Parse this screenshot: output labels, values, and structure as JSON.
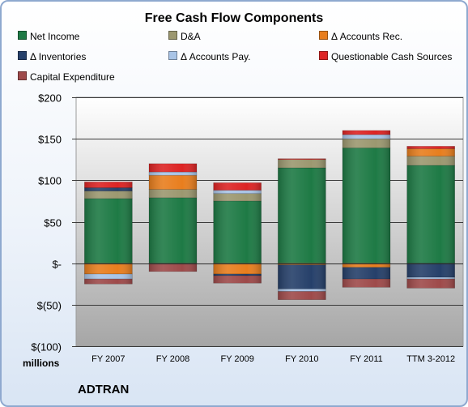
{
  "chart_data": {
    "type": "bar",
    "stacked": true,
    "title": "Free Cash Flow Components",
    "categories": [
      "FY 2007",
      "FY 2008",
      "FY 2009",
      "FY 2010",
      "FY 2011",
      "TTM 3-2012"
    ],
    "y_tick_labels": [
      "$200",
      "$150",
      "$100",
      "$50",
      "$-",
      "$(50)",
      "$(100)"
    ],
    "y_ticks": [
      200,
      150,
      100,
      50,
      0,
      -50,
      -100
    ],
    "ylim": [
      -100,
      200
    ],
    "units_label": "millions",
    "grid": true,
    "legend_position": "top",
    "series": [
      {
        "name": "Net Income",
        "color": "#1e7a45",
        "values": [
          78,
          79,
          75,
          115,
          139,
          118
        ]
      },
      {
        "name": "D&A",
        "color": "#9c9870",
        "values": [
          9,
          10,
          9,
          10,
          11,
          11
        ]
      },
      {
        "name": "Δ Accounts Rec.",
        "color": "#e87e1e",
        "values": [
          -13,
          17,
          -13,
          -2,
          -5,
          9
        ]
      },
      {
        "name": "Δ Inventories",
        "color": "#26406a",
        "values": [
          4,
          0,
          -2,
          -29,
          -14,
          -17
        ]
      },
      {
        "name": "Δ Accounts Pay.",
        "color": "#a9c4e6",
        "values": [
          -6,
          4,
          4,
          -3,
          5,
          -2
        ]
      },
      {
        "name": "Questionable Cash Sources",
        "color": "#dd2424",
        "values": [
          7,
          10,
          9,
          1,
          5,
          3
        ]
      },
      {
        "name": "Capital Expenditure",
        "color": "#9e4a4a",
        "values": [
          -6,
          -10,
          -9,
          -10,
          -10,
          -11
        ]
      }
    ]
  },
  "footer": {
    "company": "ADTRAN"
  }
}
